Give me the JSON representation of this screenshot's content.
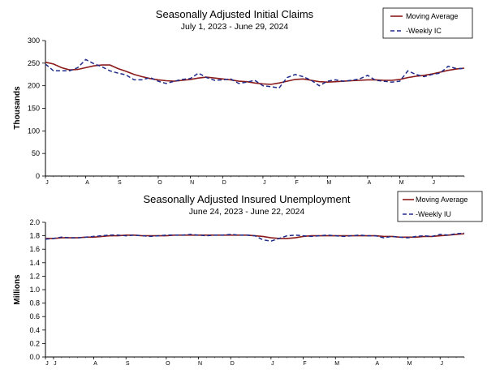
{
  "chart_data": [
    {
      "type": "line",
      "title": "Seasonally Adjusted Initial Claims",
      "subtitle": "July 1, 2023 - June 29, 2024",
      "ylabel": "Thousands",
      "ylim": [
        0,
        300
      ],
      "yticks": [
        "0",
        "50",
        "100",
        "150",
        "200",
        "250",
        "300"
      ],
      "xticks": [
        "J",
        "A",
        "S",
        "O",
        "N",
        "D",
        "J",
        "F",
        "M",
        "A",
        "M",
        "J"
      ],
      "x_tick_weeks": [
        0,
        5,
        9,
        14,
        18,
        22,
        27,
        31,
        35,
        40,
        44,
        48
      ],
      "legend": {
        "position": "top-right",
        "entries": [
          "Moving Average",
          "-Weekly IC"
        ]
      },
      "colors": {
        "moving_average": "#8b1a1a",
        "weekly": "#1f2a8a"
      },
      "series": [
        {
          "name": "Moving Average",
          "values": [
            252,
            248,
            240,
            235,
            236,
            240,
            244,
            246,
            246,
            238,
            232,
            225,
            220,
            216,
            213,
            211,
            210,
            212,
            214,
            217,
            219,
            217,
            215,
            213,
            210,
            209,
            206,
            204,
            203,
            206,
            210,
            214,
            215,
            212,
            209,
            208,
            209,
            210,
            211,
            212,
            213,
            213,
            212,
            212,
            214,
            218,
            221,
            223,
            226,
            230,
            234,
            237,
            239
          ]
        },
        {
          "name": "-Weekly IC",
          "values": [
            248,
            233,
            233,
            233,
            240,
            258,
            249,
            242,
            233,
            228,
            224,
            213,
            213,
            218,
            210,
            205,
            210,
            214,
            216,
            228,
            218,
            212,
            213,
            215,
            205,
            208,
            212,
            200,
            198,
            195,
            218,
            225,
            220,
            212,
            200,
            210,
            213,
            210,
            212,
            215,
            223,
            212,
            210,
            208,
            210,
            233,
            225,
            220,
            225,
            228,
            243,
            238,
            238
          ]
        }
      ]
    },
    {
      "type": "line",
      "title": "Seasonally Adjusted Insured Unemployment",
      "subtitle": "June 24, 2023 - June 22, 2024",
      "ylabel": "Millions",
      "ylim": [
        0,
        2.0
      ],
      "yticks": [
        "0.0",
        "0.2",
        "0.4",
        "0.6",
        "0.8",
        "1.0",
        "1.2",
        "1.4",
        "1.6",
        "1.8",
        "2.0"
      ],
      "xticks": [
        "J",
        "J",
        "A",
        "S",
        "O",
        "N",
        "D",
        "J",
        "F",
        "M",
        "A",
        "M",
        "J"
      ],
      "x_tick_weeks": [
        0,
        1,
        6,
        10,
        15,
        19,
        23,
        28,
        32,
        36,
        41,
        45,
        49
      ],
      "legend": {
        "position": "top-right",
        "entries": [
          "Moving Average",
          "-Weekly IU"
        ]
      },
      "colors": {
        "moving_average": "#8b1a1a",
        "weekly": "#1f2a8a"
      },
      "series": [
        {
          "name": "Moving Average",
          "values": [
            1.76,
            1.76,
            1.77,
            1.77,
            1.77,
            1.78,
            1.78,
            1.79,
            1.8,
            1.8,
            1.81,
            1.81,
            1.8,
            1.8,
            1.8,
            1.8,
            1.81,
            1.81,
            1.81,
            1.81,
            1.81,
            1.81,
            1.81,
            1.81,
            1.81,
            1.81,
            1.8,
            1.79,
            1.77,
            1.76,
            1.76,
            1.77,
            1.79,
            1.8,
            1.8,
            1.8,
            1.8,
            1.8,
            1.8,
            1.8,
            1.8,
            1.8,
            1.79,
            1.79,
            1.78,
            1.78,
            1.78,
            1.79,
            1.79,
            1.8,
            1.81,
            1.82,
            1.83
          ]
        },
        {
          "name": "-Weekly IU",
          "values": [
            1.75,
            1.76,
            1.78,
            1.77,
            1.77,
            1.78,
            1.79,
            1.8,
            1.81,
            1.81,
            1.8,
            1.81,
            1.8,
            1.79,
            1.8,
            1.81,
            1.81,
            1.81,
            1.82,
            1.81,
            1.8,
            1.81,
            1.81,
            1.82,
            1.81,
            1.81,
            1.8,
            1.74,
            1.72,
            1.76,
            1.8,
            1.81,
            1.8,
            1.79,
            1.8,
            1.81,
            1.8,
            1.79,
            1.8,
            1.81,
            1.8,
            1.8,
            1.77,
            1.79,
            1.78,
            1.77,
            1.79,
            1.8,
            1.79,
            1.82,
            1.81,
            1.83,
            1.84
          ]
        }
      ]
    }
  ]
}
